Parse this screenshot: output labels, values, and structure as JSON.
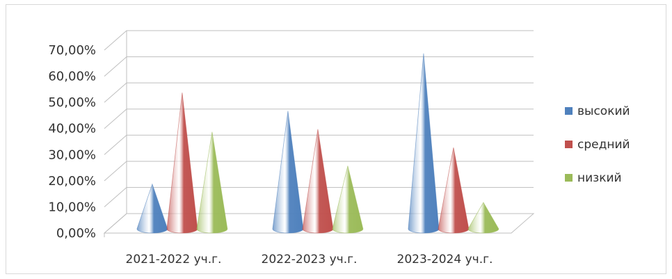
{
  "chart_data": {
    "type": "bar",
    "shape": "cone-3d",
    "categories": [
      "2021-2022 уч.г.",
      "2022-2023 уч.г.",
      "2023-2024 уч.г."
    ],
    "series": [
      {
        "name": "высокий",
        "values": [
          15,
          43,
          65
        ],
        "color": "#4f81bd"
      },
      {
        "name": "средний",
        "values": [
          50,
          36,
          29
        ],
        "color": "#c0504d"
      },
      {
        "name": "низкий",
        "values": [
          35,
          22,
          8
        ],
        "color": "#9bbb59"
      }
    ],
    "y_ticks": [
      "0,00%",
      "10,00%",
      "20,00%",
      "30,00%",
      "40,00%",
      "50,00%",
      "60,00%",
      "70,00%"
    ],
    "ylim": [
      0,
      70
    ],
    "grid": true,
    "legend_position": "right"
  }
}
